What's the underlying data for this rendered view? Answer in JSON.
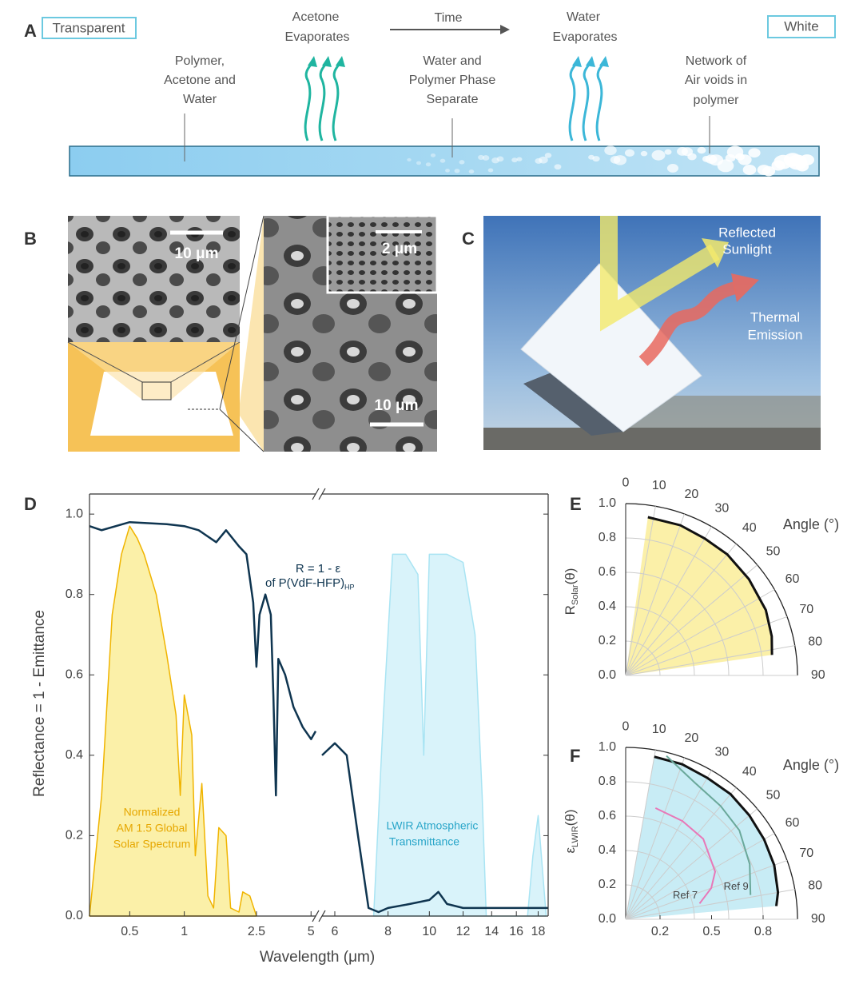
{
  "panel_a": {
    "label": "A",
    "left_tag": "Transparent",
    "right_tag": "White",
    "arrow_label": "Time",
    "evap1": [
      "Acetone",
      "Evaporates"
    ],
    "evap2": [
      "Water",
      "Evaporates"
    ],
    "stage1": [
      "Polymer,",
      "Acetone and",
      "Water"
    ],
    "stage2": [
      "Water and",
      "Polymer Phase",
      "Separate"
    ],
    "stage3": [
      "Network of",
      "Air voids in",
      "polymer"
    ]
  },
  "panel_b": {
    "label": "B",
    "scale_top": "10 μm",
    "scale_inset": "2 μm",
    "scale_main": "10 μm"
  },
  "panel_c": {
    "label": "C",
    "reflected": [
      "Reflected",
      "Sunlight"
    ],
    "thermal": [
      "Thermal",
      "Emission"
    ]
  },
  "chart_data": [
    {
      "label": "D",
      "type": "line",
      "xlabel": "Wavelength (μm)",
      "ylabel": "Reflectance  = 1 - Emittance",
      "log_x": true,
      "x_break": [
        5.3,
        5.6
      ],
      "xlim": [
        0.3,
        19
      ],
      "ylim": [
        0,
        1.05
      ],
      "xticks": [
        0.5,
        1,
        2.5,
        5,
        6,
        8,
        10,
        12,
        14,
        16,
        18
      ],
      "yticks": [
        {
          "value": 0,
          "label": "0.0"
        },
        0.2,
        0.4,
        0.6,
        0.8,
        {
          "value": 1,
          "label": "1.0"
        }
      ],
      "annotations": {
        "solar": [
          "Normalized",
          "AM 1.5 Global",
          "Solar Spectrum"
        ],
        "lwir": [
          "LWIR Atmospheric",
          "Transmittance"
        ],
        "reflectance": [
          "R = 1 - ε",
          "of P(VdF-HFP)",
          "HP"
        ]
      },
      "series": [
        {
          "color": "#f0b400",
          "fill": "#fbf0a8",
          "x": [
            0.3,
            0.35,
            0.4,
            0.45,
            0.5,
            0.55,
            0.6,
            0.7,
            0.8,
            0.9,
            0.95,
            1.0,
            1.1,
            1.15,
            1.25,
            1.35,
            1.45,
            1.55,
            1.7,
            1.8,
            2.0,
            2.1,
            2.3,
            2.5
          ],
          "values": [
            0,
            0.3,
            0.75,
            0.9,
            0.97,
            0.94,
            0.9,
            0.8,
            0.65,
            0.5,
            0.3,
            0.55,
            0.45,
            0.15,
            0.33,
            0.05,
            0.02,
            0.22,
            0.2,
            0.02,
            0.01,
            0.06,
            0.05,
            0
          ]
        },
        {
          "color": "#a9e4f3",
          "fill": "#d9f3fa",
          "x": [
            7.4,
            7.8,
            8.2,
            8.8,
            9.4,
            9.7,
            10.0,
            11.0,
            12.0,
            12.8,
            13.3,
            13.6,
            17.0,
            17.5,
            18.0,
            18.8
          ],
          "values": [
            0,
            0.5,
            0.9,
            0.9,
            0.85,
            0.4,
            0.9,
            0.9,
            0.88,
            0.7,
            0.3,
            0,
            0,
            0.15,
            0.25,
            0
          ]
        },
        {
          "color": "#0f3550",
          "x": [
            0.3,
            0.35,
            0.5,
            0.8,
            1.0,
            1.2,
            1.5,
            1.7,
            2.0,
            2.2,
            2.4,
            2.5,
            2.6,
            2.8,
            3.0,
            3.1,
            3.2,
            3.3,
            3.6,
            4.0,
            4.5,
            5.0,
            5.3,
            5.45,
            5.6,
            6.0,
            6.4,
            6.8,
            7.2,
            7.6,
            8.0,
            9,
            10,
            10.5,
            11,
            12,
            14,
            16,
            18,
            19
          ],
          "values": [
            0.97,
            0.96,
            0.98,
            0.975,
            0.97,
            0.96,
            0.93,
            0.96,
            0.92,
            0.9,
            0.78,
            0.62,
            0.75,
            0.8,
            0.75,
            0.55,
            0.3,
            0.64,
            0.6,
            0.52,
            0.47,
            0.44,
            0.46,
            null,
            0.4,
            0.43,
            0.4,
            0.2,
            0.02,
            0.01,
            0.02,
            0.03,
            0.04,
            0.06,
            0.03,
            0.02,
            0.02,
            0.02,
            0.02,
            0.02
          ]
        }
      ]
    },
    {
      "label": "E",
      "type": "polar",
      "ylabel_main": "R",
      "ylabel_sub": "Solar",
      "ylabel_tail": "(θ)",
      "angle_label": "Angle (°)",
      "rlim": [
        0,
        1
      ],
      "rticks": [
        {
          "value": 0,
          "label": "0.0"
        },
        0.2,
        0.4,
        0.6,
        0.8,
        {
          "value": 1,
          "label": "1.0"
        }
      ],
      "angle_ticks": [
        0,
        10,
        20,
        30,
        40,
        50,
        60,
        70,
        80,
        90
      ],
      "series": [
        {
          "color": "#111111",
          "fill": "#fbf0a8",
          "x": [
            8,
            20,
            30,
            40,
            52,
            65,
            75,
            82
          ],
          "values": [
            0.93,
            0.93,
            0.92,
            0.92,
            0.91,
            0.9,
            0.88,
            0.86
          ]
        }
      ]
    },
    {
      "label": "F",
      "type": "polar",
      "ylabel_main": "ε",
      "ylabel_sub": "LWIR",
      "ylabel_tail": "(θ)",
      "angle_label": "Angle (°)",
      "rlim": [
        0,
        1
      ],
      "rticks": [
        {
          "value": 0,
          "label": "0.0"
        },
        0.2,
        0.4,
        0.6,
        0.8,
        {
          "value": 1,
          "label": "1.0"
        }
      ],
      "angle_ticks": [
        0,
        10,
        20,
        30,
        40,
        50,
        60,
        70,
        80,
        90
      ],
      "xticks": [
        0.2,
        0.5,
        0.8
      ],
      "series": [
        {
          "color": "#111111",
          "fill": "#c8ecf5",
          "x": [
            10,
            20,
            30,
            40,
            50,
            60,
            70,
            80,
            85
          ],
          "values": [
            0.96,
            0.96,
            0.95,
            0.95,
            0.94,
            0.93,
            0.92,
            0.9,
            0.88
          ]
        },
        {
          "name": "Ref 9",
          "color": "#6aa89a",
          "x": [
            14,
            20,
            27,
            40,
            52,
            66,
            79
          ],
          "values": [
            0.98,
            0.93,
            0.89,
            0.86,
            0.84,
            0.79,
            0.74
          ]
        },
        {
          "name": "Ref 7",
          "color": "#e878b8",
          "x": [
            15,
            30,
            44,
            62,
            70,
            78
          ],
          "values": [
            0.67,
            0.66,
            0.65,
            0.59,
            0.53,
            0.44
          ]
        }
      ]
    }
  ]
}
